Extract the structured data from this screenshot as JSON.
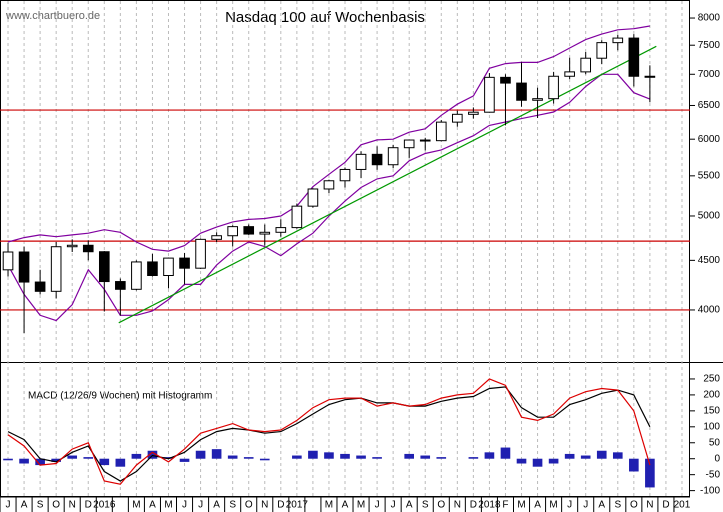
{
  "chart_data": [
    {
      "type": "candlestick",
      "title": "Nasdaq 100 auf Wochenbasis",
      "source": "www.chartbuero.de",
      "log_scale": true,
      "ylim": [
        3535,
        8350
      ],
      "yticks": [
        4000,
        4500,
        5000,
        5500,
        6000,
        6500,
        7000,
        7500,
        8000
      ],
      "up_color": "#ffffff",
      "down_color": "#000000",
      "open": [
        4400,
        4590,
        4274,
        4181,
        4648,
        4664,
        4593,
        4279,
        4201,
        4483,
        4341,
        4524,
        4417,
        4730,
        4771,
        4875,
        4790,
        4810,
        4864,
        5118,
        5331,
        5436,
        5584,
        5788,
        5647,
        5880,
        5988,
        5979,
        6248,
        6365,
        6397,
        6949,
        6855,
        6581,
        6606,
        6967,
        7040,
        7272,
        7546,
        7628,
        6967,
        null,
        null
      ],
      "high": [
        4690,
        4650,
        4400,
        4700,
        4730,
        4720,
        4600,
        4310,
        4500,
        4570,
        4530,
        4580,
        4740,
        4810,
        4890,
        4900,
        4900,
        4960,
        5150,
        5340,
        5450,
        5610,
        5830,
        5900,
        5920,
        5990,
        6020,
        6280,
        6420,
        6470,
        7020,
        7000,
        7200,
        6780,
        7040,
        7280,
        7380,
        7590,
        7690,
        7700,
        7150,
        null,
        null
      ],
      "low": [
        4330,
        3787,
        4150,
        4110,
        4590,
        4500,
        3985,
        3947,
        4190,
        4330,
        4210,
        4250,
        4410,
        4700,
        4650,
        4780,
        4660,
        4760,
        4850,
        5100,
        5280,
        5350,
        5470,
        5580,
        5600,
        5740,
        5840,
        5970,
        6180,
        6300,
        6390,
        6200,
        6480,
        6310,
        6530,
        6920,
        7000,
        7170,
        7410,
        6800,
        6550,
        null,
        null
      ],
      "close": [
        4590,
        4274,
        4181,
        4648,
        4664,
        4593,
        4279,
        4201,
        4483,
        4341,
        4524,
        4417,
        4730,
        4771,
        4875,
        4790,
        4810,
        4864,
        5118,
        5331,
        5436,
        5584,
        5788,
        5647,
        5880,
        5988,
        5979,
        6248,
        6365,
        6397,
        6949,
        6855,
        6581,
        6606,
        6967,
        7040,
        7272,
        7546,
        7628,
        6967,
        6950,
        null,
        null
      ],
      "series": [
        {
          "color": "#8000a0",
          "values": [
            4700,
            4750,
            4780,
            4760,
            4780,
            4800,
            4840,
            4810,
            4700,
            4620,
            4600,
            4660,
            4800,
            4870,
            4930,
            4960,
            4970,
            5000,
            5120,
            5360,
            5520,
            5680,
            5920,
            5990,
            6000,
            6100,
            6150,
            6350,
            6520,
            6650,
            7100,
            7180,
            7200,
            7200,
            7300,
            7450,
            7600,
            7700,
            7780,
            7800,
            7850,
            null,
            null
          ]
        },
        {
          "color": "#8000a0",
          "values": [
            4450,
            4150,
            3950,
            3900,
            4050,
            4400,
            4200,
            3950,
            3950,
            3990,
            4100,
            4250,
            4250,
            4450,
            4600,
            4700,
            4650,
            4550,
            4680,
            4800,
            5000,
            5180,
            5350,
            5460,
            5500,
            5700,
            5800,
            5850,
            5950,
            6050,
            6200,
            6250,
            6300,
            6350,
            6400,
            6550,
            6800,
            7000,
            7000,
            6700,
            6600,
            null,
            null
          ]
        }
      ],
      "hlines": {
        "color": "#cc0000",
        "values": [
          4000,
          4710,
          6430
        ]
      },
      "trendline": {
        "color": "#009900",
        "x": [
          7.4,
          40.9
        ],
        "values": [
          3880,
          7480
        ]
      }
    },
    {
      "type": "line",
      "label": "MACD (12/26/9 Wochen) mit Histogramm",
      "categories": [
        "J",
        "A",
        "S",
        "O",
        "N",
        "D",
        "2016",
        null,
        "M",
        "A",
        "M",
        "J",
        "J",
        "A",
        "S",
        "O",
        "N",
        "D",
        "2017",
        null,
        "M",
        "A",
        "M",
        "J",
        "J",
        "A",
        "S",
        "O",
        "N",
        "D",
        "2018",
        "F",
        "M",
        "A",
        "M",
        "J",
        "J",
        "A",
        "S",
        "O",
        "N",
        "D",
        "201"
      ],
      "ylim": [
        -120,
        300
      ],
      "yticks": [
        -100,
        -50,
        0,
        50,
        100,
        150,
        200,
        250
      ],
      "series": [
        {
          "color": "#000000",
          "values": [
            85,
            60,
            0,
            -10,
            20,
            40,
            -40,
            -70,
            -40,
            10,
            0,
            20,
            60,
            85,
            95,
            90,
            80,
            85,
            110,
            140,
            170,
            185,
            190,
            175,
            175,
            165,
            165,
            180,
            190,
            195,
            220,
            225,
            160,
            130,
            130,
            170,
            185,
            205,
            215,
            200,
            100,
            null,
            null
          ]
        },
        {
          "color": "#dd0000",
          "values": [
            75,
            40,
            -20,
            -15,
            30,
            50,
            -70,
            -80,
            -20,
            20,
            -10,
            30,
            80,
            95,
            110,
            90,
            85,
            90,
            120,
            160,
            185,
            190,
            190,
            165,
            175,
            165,
            170,
            190,
            200,
            205,
            250,
            230,
            130,
            120,
            140,
            190,
            210,
            220,
            215,
            150,
            -20,
            null,
            null
          ]
        }
      ],
      "histogram": {
        "color": "#2020b0",
        "values": [
          -5,
          -15,
          -20,
          -10,
          10,
          5,
          -20,
          -25,
          15,
          25,
          5,
          -10,
          25,
          30,
          10,
          5,
          -5,
          0,
          10,
          25,
          20,
          15,
          10,
          5,
          0,
          15,
          10,
          5,
          0,
          5,
          20,
          35,
          -15,
          -25,
          -15,
          15,
          10,
          25,
          20,
          -40,
          -90,
          null,
          null
        ]
      }
    }
  ]
}
